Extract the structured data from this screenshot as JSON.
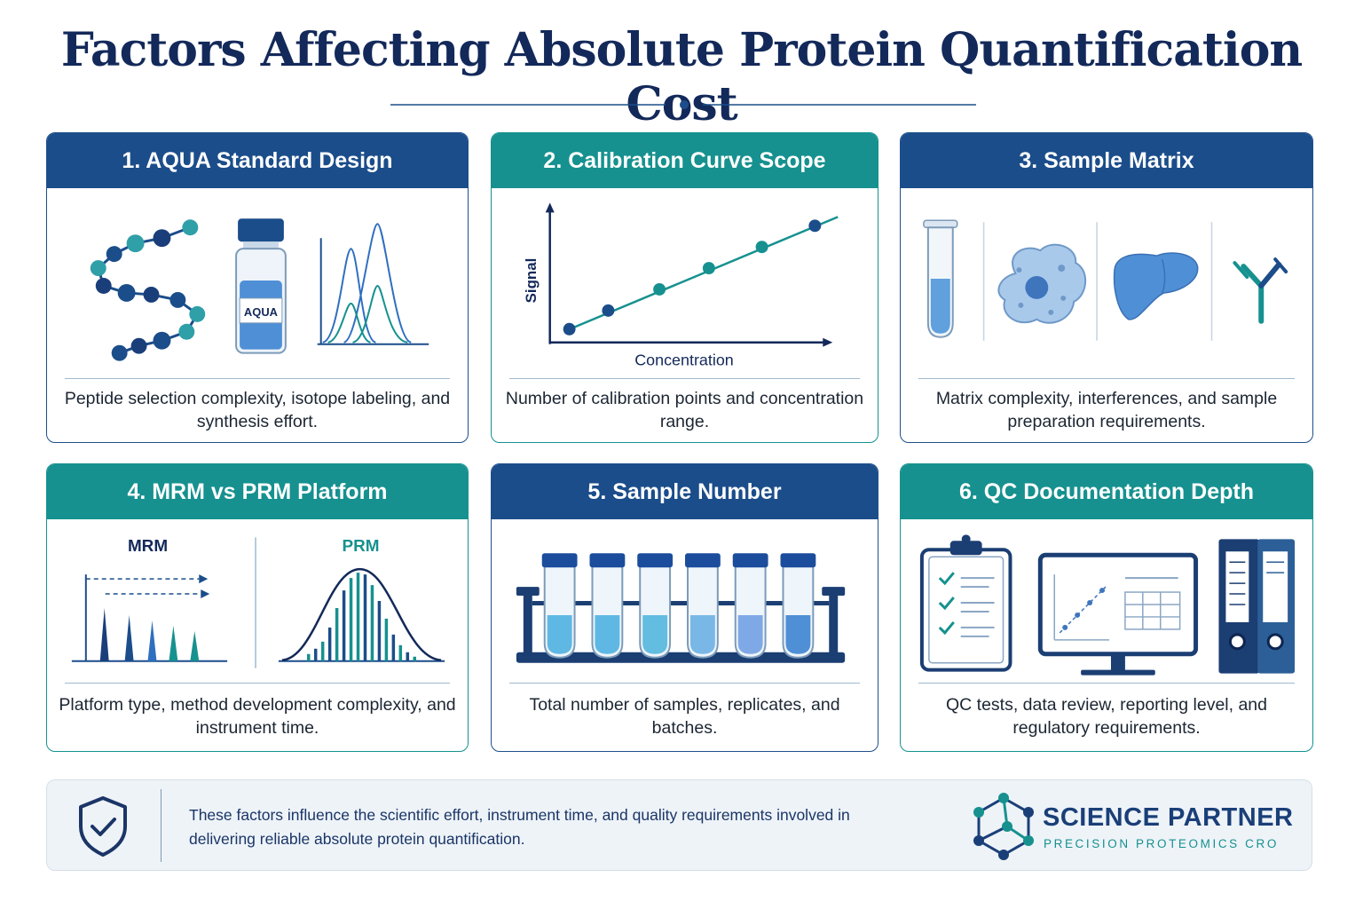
{
  "title": "Factors Affecting Absolute Protein Quantification Cost",
  "colors": {
    "navy": "#1b4d8a",
    "teal": "#16918f",
    "title": "#13295a",
    "light_blue": "#5fa0dd"
  },
  "cards": [
    {
      "heading": "1. AQUA Standard Design",
      "description": "Peptide selection complexity, isotope labeling, and synthesis effort.",
      "vial_label": "AQUA"
    },
    {
      "heading": "2. Calibration Curve Scope",
      "description": "Number of calibration points and concentration range.",
      "y_axis_label": "Signal",
      "x_axis_label": "Concentration"
    },
    {
      "heading": "3. Sample Matrix",
      "description": "Matrix complexity, interferences, and sample preparation requirements."
    },
    {
      "heading": "4. MRM vs PRM Platform",
      "description": "Platform type, method development complexity, and instrument time.",
      "left_label": "MRM",
      "right_label": "PRM"
    },
    {
      "heading": "5. Sample Number",
      "description": "Total number of samples, replicates, and batches."
    },
    {
      "heading": "6. QC Documentation Depth",
      "description": "QC tests, data review, reporting level, and regulatory requirements."
    }
  ],
  "footer": {
    "text": "These factors influence the scientific effort, instrument time, and quality requirements involved in delivering reliable absolute protein quantification.",
    "brand_name": "SCIENCE PARTNER",
    "brand_tagline": "PRECISION PROTEOMICS CRO"
  },
  "icons": {
    "card1": [
      "peptide-chain-icon",
      "aqua-vial-icon",
      "isotope-peaks-icon"
    ],
    "card2": [
      "calibration-curve-icon"
    ],
    "card3": [
      "test-tube-icon",
      "cell-icon",
      "liver-icon",
      "antibody-icon"
    ],
    "card4": [
      "mrm-transitions-icon",
      "prm-spectrum-icon"
    ],
    "card5": [
      "sample-rack-icon"
    ],
    "card6": [
      "clipboard-checklist-icon",
      "monitor-chart-icon",
      "binders-icon"
    ],
    "footer": [
      "shield-check-icon",
      "molecule-logo-icon"
    ]
  }
}
